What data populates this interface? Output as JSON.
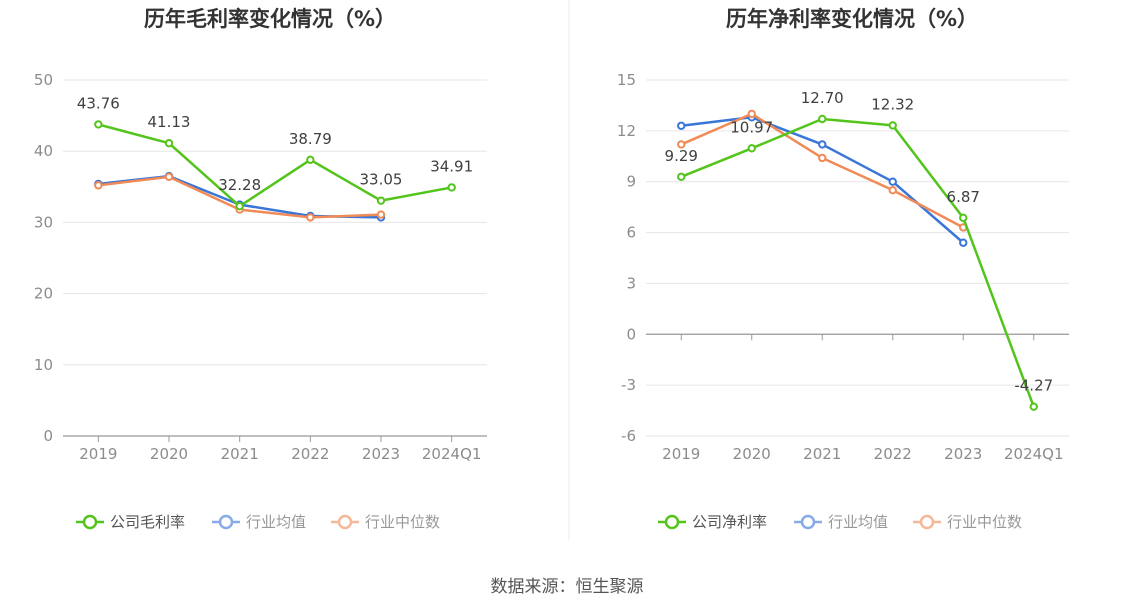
{
  "footer": {
    "source": "数据来源：恒生聚源"
  },
  "chart_data": [
    {
      "type": "line",
      "title": "历年毛利率变化情况（%）",
      "categories": [
        "2019",
        "2020",
        "2021",
        "2022",
        "2023",
        "2024Q1"
      ],
      "ylim": [
        0,
        50
      ],
      "yticks": [
        0,
        10,
        20,
        30,
        40,
        50
      ],
      "grid": true,
      "legend_position": "bottom",
      "series": [
        {
          "name": "公司毛利率",
          "color": "#52c41a",
          "values": [
            43.76,
            41.13,
            32.28,
            38.79,
            33.05,
            34.91
          ],
          "labels": [
            "43.76",
            "41.13",
            "32.28",
            "38.79",
            "33.05",
            "34.91"
          ]
        },
        {
          "name": "行业均值",
          "color": "#3a75d8",
          "values": [
            35.4,
            36.5,
            32.5,
            30.9,
            30.7,
            null
          ]
        },
        {
          "name": "行业中位数",
          "color": "#f08a56",
          "values": [
            35.2,
            36.4,
            31.8,
            30.7,
            31.1,
            null
          ]
        }
      ]
    },
    {
      "type": "line",
      "title": "历年净利率变化情况（%）",
      "categories": [
        "2019",
        "2020",
        "2021",
        "2022",
        "2023",
        "2024Q1"
      ],
      "ylim": [
        -6,
        15
      ],
      "yticks": [
        -6,
        -3,
        0,
        3,
        6,
        9,
        12,
        15
      ],
      "grid": true,
      "legend_position": "bottom",
      "series": [
        {
          "name": "公司净利率",
          "color": "#52c41a",
          "values": [
            9.29,
            10.97,
            12.7,
            12.32,
            6.87,
            -4.27
          ],
          "labels": [
            "9.29",
            "10.97",
            "12.70",
            "12.32",
            "6.87",
            "-4.27"
          ]
        },
        {
          "name": "行业均值",
          "color": "#3a75d8",
          "values": [
            12.3,
            12.8,
            11.2,
            9.0,
            5.4,
            null
          ]
        },
        {
          "name": "行业中位数",
          "color": "#f08a56",
          "values": [
            11.2,
            13.0,
            10.4,
            8.5,
            6.3,
            null
          ]
        }
      ]
    }
  ]
}
